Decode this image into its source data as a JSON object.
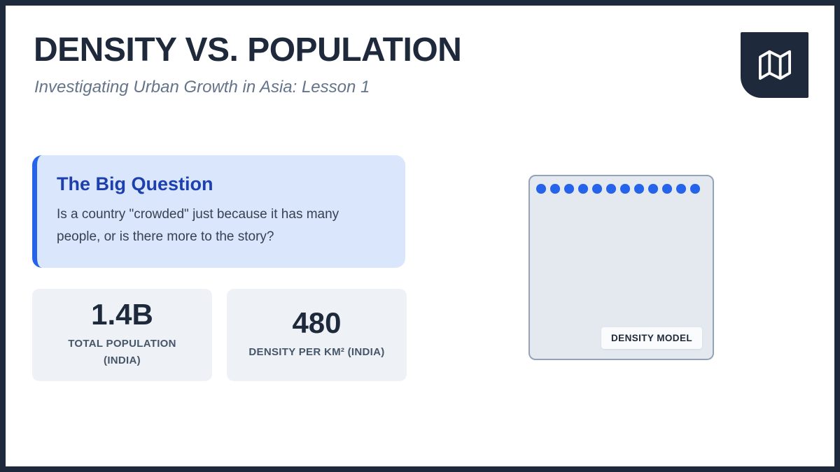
{
  "header": {
    "title": "DENSITY VS. POPULATION",
    "subtitle": "Investigating Urban Growth in Asia: Lesson 1",
    "logo_icon": "map-icon"
  },
  "big_question": {
    "heading": "The Big Question",
    "body": "Is a country \"crowded\" just because it has many people, or is there more to the story?"
  },
  "stats": [
    {
      "value": "1.4B",
      "label": "TOTAL POPULATION (INDIA)"
    },
    {
      "value": "480",
      "label": "DENSITY PER KM² (INDIA)"
    }
  ],
  "density_model": {
    "label": "DENSITY MODEL",
    "dot_count": 12,
    "dot_color": "#2563eb"
  },
  "colors": {
    "frame_navy": "#1e293b",
    "accent_blue": "#2563eb",
    "question_bg": "#d9e6fb",
    "heading_blue": "#1e40af",
    "body_text": "#374151",
    "card_bg": "#eef2f7",
    "card_label": "#475569",
    "model_bg": "#e4e9f0",
    "model_border": "#94a3b8",
    "subtitle_gray": "#64748b"
  }
}
